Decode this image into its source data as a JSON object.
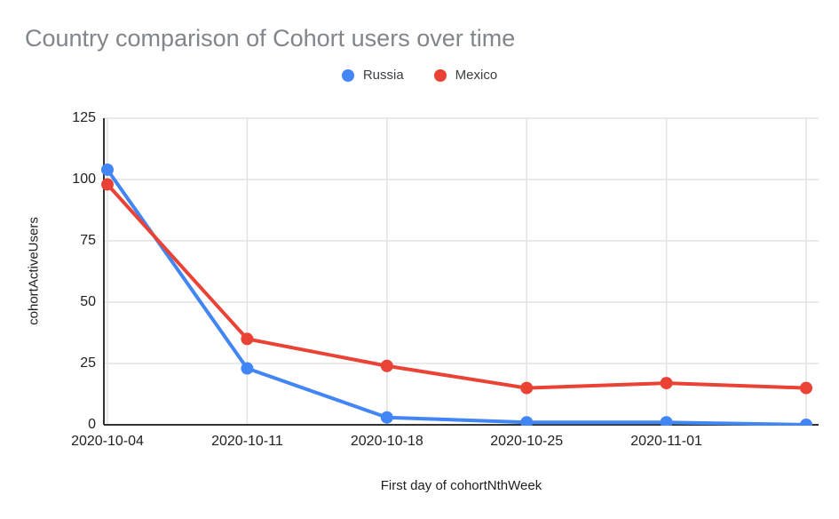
{
  "header": {
    "title": "Country comparison of Cohort users over time",
    "title_color": "#80868b"
  },
  "legend": {
    "position": "top-center",
    "items": [
      {
        "label": "Russia",
        "color": "#4285f4"
      },
      {
        "label": "Mexico",
        "color": "#ea4335"
      }
    ]
  },
  "chart_data": {
    "type": "line",
    "title": "Country comparison of Cohort users over time",
    "xlabel": "First day of cohortNthWeek",
    "ylabel": "cohortActiveUsers",
    "categories": [
      "2020-10-04",
      "2020-10-11",
      "2020-10-18",
      "2020-10-25",
      "2020-11-01",
      ""
    ],
    "series": [
      {
        "name": "Russia",
        "color": "#4285f4",
        "values": [
          104,
          23,
          3,
          1,
          1,
          0
        ]
      },
      {
        "name": "Mexico",
        "color": "#ea4335",
        "values": [
          98,
          35,
          24,
          15,
          17,
          15
        ]
      }
    ],
    "ylim": [
      0,
      125
    ],
    "yticks": [
      0,
      25,
      50,
      75,
      100,
      125
    ],
    "grid": true,
    "gridline_color": "#e3e3e3",
    "axis_line_color": "#333333",
    "legend_position": "top-center",
    "notes": "sixth x position has a gridline and data points but no visible tick label; last Russia point is half-clipped at the zero baseline"
  }
}
